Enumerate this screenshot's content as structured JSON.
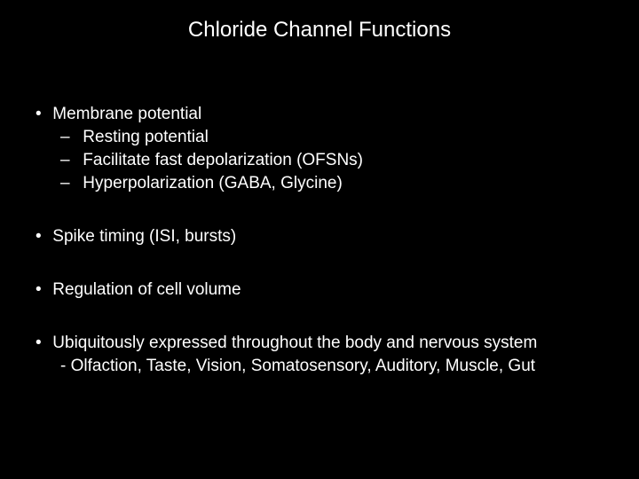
{
  "slide": {
    "title": "Chloride Channel Functions",
    "background_color": "#000000",
    "text_color": "#ffffff",
    "title_fontsize": 24,
    "body_fontsize": 19,
    "font_family": "Arial",
    "bullets": [
      {
        "text": "Membrane potential",
        "children": [
          {
            "text": "Resting potential"
          },
          {
            "text": "Facilitate fast depolarization (OFSNs)"
          },
          {
            "text": "Hyperpolarization (GABA, Glycine)"
          }
        ]
      },
      {
        "text": "Spike timing (ISI, bursts)"
      },
      {
        "text": "Regulation of cell volume"
      },
      {
        "text": "Ubiquitously expressed throughout the body and nervous system",
        "continuation": "- Olfaction, Taste, Vision, Somatosensory, Auditory, Muscle, Gut"
      }
    ]
  }
}
